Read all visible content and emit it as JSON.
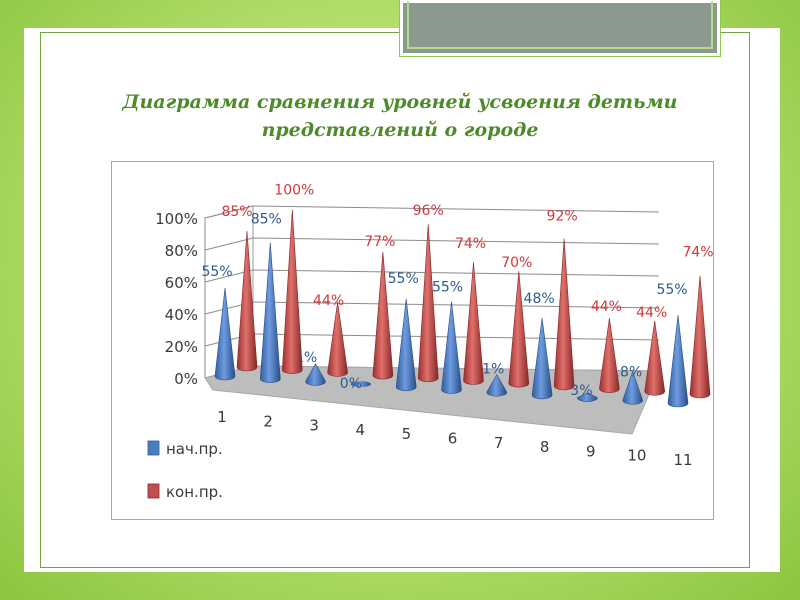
{
  "slide": {
    "title_line1": "Диаграмма сравнения уровней усвоения детьми",
    "title_line2": "представлений о городе"
  },
  "chart_data": {
    "type": "bar",
    "categories": [
      "1",
      "2",
      "3",
      "4",
      "5",
      "6",
      "7",
      "8",
      "9",
      "10",
      "11"
    ],
    "series": [
      {
        "name": "нач.пр.",
        "color": "#4a7ebb",
        "values": [
          55,
          85,
          11,
          0,
          55,
          55,
          11,
          48,
          3,
          18,
          55
        ]
      },
      {
        "name": "кон.пр.",
        "color": "#c0504d",
        "values": [
          85,
          100,
          44,
          77,
          96,
          74,
          70,
          92,
          44,
          44,
          74
        ]
      }
    ],
    "y_ticks": [
      "0%",
      "20%",
      "40%",
      "60%",
      "80%",
      "100%"
    ],
    "ylim": [
      0,
      100
    ],
    "grid": true,
    "legend_position": "bottom-left",
    "shape": "3d-cone"
  }
}
